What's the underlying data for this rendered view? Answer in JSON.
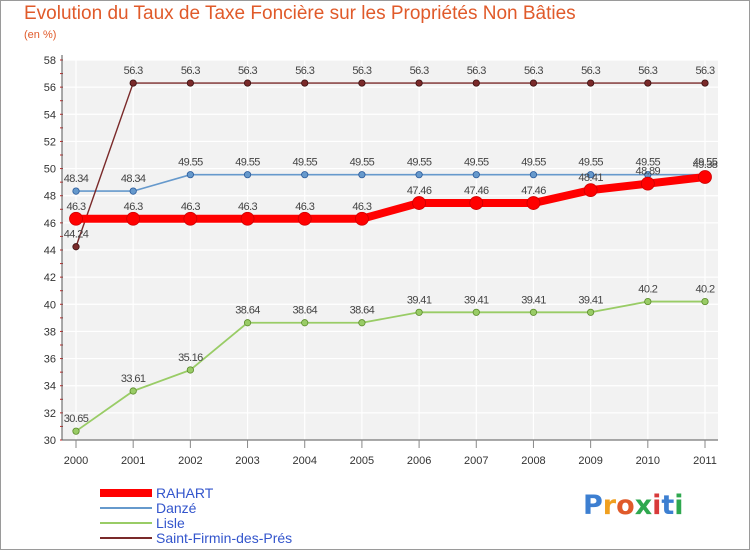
{
  "title": "Evolution du Taux de Taxe Foncière sur les Propriétés Non Bâties",
  "subtitle": "(en %)",
  "logo": {
    "text": "Proxiti",
    "colors": [
      "#3d7fd1",
      "#f0a020",
      "#e05a2a",
      "#2fa84f",
      "#d83a3a",
      "#3d7fd1",
      "#2fa84f"
    ]
  },
  "chart_data": {
    "type": "line",
    "x": [
      "2000",
      "2001",
      "2002",
      "2003",
      "2004",
      "2005",
      "2006",
      "2007",
      "2008",
      "2009",
      "2010",
      "2011"
    ],
    "ylim": [
      30,
      58
    ],
    "yticks": [
      30,
      32,
      34,
      36,
      38,
      40,
      42,
      44,
      46,
      48,
      50,
      52,
      54,
      56,
      58
    ],
    "grid": true,
    "legend": "bottom-left",
    "series": [
      {
        "name": "RAHART",
        "color": "#ff0000",
        "values": [
          46.3,
          46.3,
          46.3,
          46.3,
          46.3,
          46.3,
          47.46,
          47.46,
          47.46,
          48.41,
          48.89,
          49.38
        ],
        "labels": [
          "46.3",
          "46.3",
          "46.3",
          "46.3",
          "46.3",
          "46.3",
          "47.46",
          "47.46",
          "47.46",
          "48.41",
          "48.89",
          "49.38"
        ]
      },
      {
        "name": "Danzé",
        "color": "#6699cc",
        "values": [
          48.34,
          48.34,
          49.55,
          49.55,
          49.55,
          49.55,
          49.55,
          49.55,
          49.55,
          49.55,
          49.55,
          49.55
        ],
        "labels": [
          "48.34",
          "48.34",
          "49.55",
          "49.55",
          "49.55",
          "49.55",
          "49.55",
          "49.55",
          "49.55",
          "49.55",
          "49.55",
          "49.55"
        ]
      },
      {
        "name": "Lisle",
        "color": "#99cc66",
        "values": [
          30.65,
          33.61,
          35.16,
          38.64,
          38.64,
          38.64,
          39.41,
          39.41,
          39.41,
          39.41,
          40.2,
          40.2
        ],
        "labels": [
          "30.65",
          "33.61",
          "35.16",
          "38.64",
          "38.64",
          "38.64",
          "39.41",
          "39.41",
          "39.41",
          "39.41",
          "40.2",
          "40.2"
        ]
      },
      {
        "name": "Saint-Firmin-des-Prés",
        "color": "#7a2a2a",
        "values": [
          44.24,
          56.3,
          56.3,
          56.3,
          56.3,
          56.3,
          56.3,
          56.3,
          56.3,
          56.3,
          56.3,
          56.3
        ],
        "labels": [
          "44.24",
          "56.3",
          "56.3",
          "56.3",
          "56.3",
          "56.3",
          "56.3",
          "56.3",
          "56.3",
          "56.3",
          "56.3",
          "56.3"
        ]
      }
    ]
  }
}
